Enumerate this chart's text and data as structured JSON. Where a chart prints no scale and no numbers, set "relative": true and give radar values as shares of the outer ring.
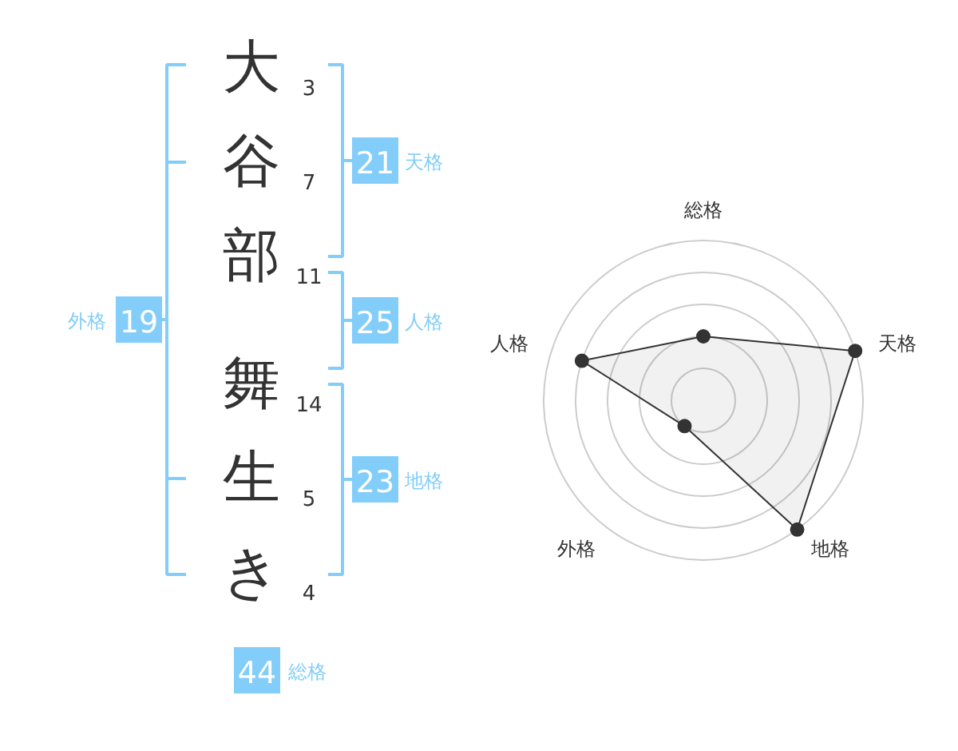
{
  "chart_data": [
    {
      "type": "other",
      "categories": [
        "大",
        "谷",
        "部",
        "舞",
        "生",
        "き"
      ],
      "values": [
        3,
        7,
        11,
        14,
        5,
        4
      ],
      "data_labels": true,
      "color": "#82cdf9",
      "annotations": [
        "21",
        "天格",
        "25",
        "人格",
        "23",
        "地格",
        "19",
        "外格",
        "44",
        "総格"
      ]
    },
    {
      "type": "radar",
      "categories": [
        "総格",
        "天格",
        "地格",
        "外格",
        "人格"
      ],
      "relative": true,
      "grid": true,
      "marker": "circle",
      "series": [
        {
          "color": "#333333",
          "values": [
            0.4,
            1,
            1,
            0.2,
            0.8
          ]
        }
      ]
    }
  ]
}
